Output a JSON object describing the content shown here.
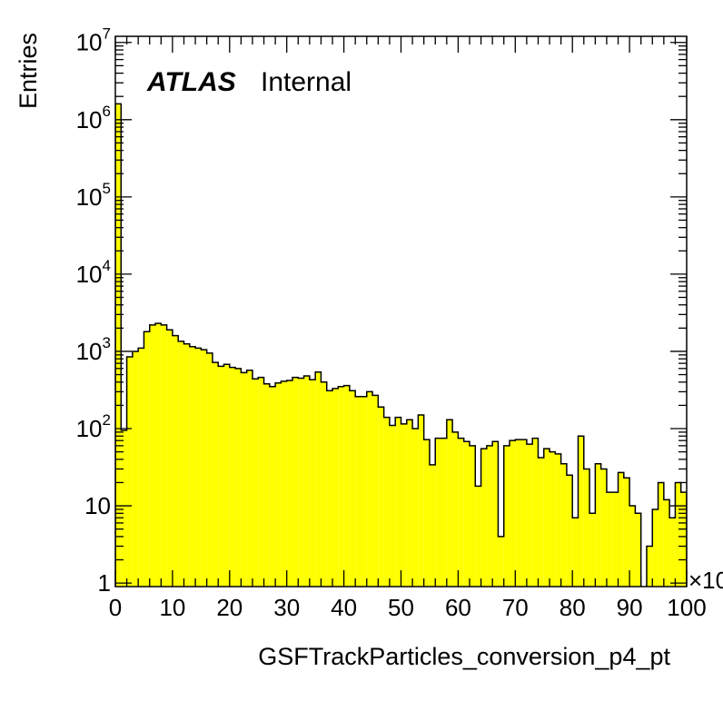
{
  "chart_data": {
    "type": "bar",
    "title": "",
    "xlabel": "GSFTrackParticles_conversion_p4_pt",
    "ylabel": "Entries",
    "x_multiplier_label": "×10",
    "annotation_bold": "ATLAS",
    "annotation_text": "Internal",
    "xlim": [
      0,
      100
    ],
    "ylim": [
      0.9,
      12000000
    ],
    "y_scale": "log",
    "grid": false,
    "fill_color": "#ffff00",
    "line_color": "#000000",
    "x_ticks": [
      {
        "value": 0,
        "label": "0"
      },
      {
        "value": 10,
        "label": "10"
      },
      {
        "value": 20,
        "label": "20"
      },
      {
        "value": 30,
        "label": "30"
      },
      {
        "value": 40,
        "label": "40"
      },
      {
        "value": 50,
        "label": "50"
      },
      {
        "value": 60,
        "label": "60"
      },
      {
        "value": 70,
        "label": "70"
      },
      {
        "value": 80,
        "label": "80"
      },
      {
        "value": 90,
        "label": "90"
      },
      {
        "value": 100,
        "label": "100"
      }
    ],
    "y_ticks": [
      {
        "value": 1,
        "base": "1",
        "exp": ""
      },
      {
        "value": 10,
        "base": "10",
        "exp": ""
      },
      {
        "value": 100,
        "base": "10",
        "exp": "2"
      },
      {
        "value": 1000,
        "base": "10",
        "exp": "3"
      },
      {
        "value": 10000,
        "base": "10",
        "exp": "4"
      },
      {
        "value": 100000,
        "base": "10",
        "exp": "5"
      },
      {
        "value": 1000000,
        "base": "10",
        "exp": "6"
      },
      {
        "value": 10000000,
        "base": "10",
        "exp": "7"
      }
    ],
    "bin_width": 1,
    "values": [
      1600000,
      95,
      850,
      1000,
      1100,
      1800,
      2200,
      2300,
      2200,
      1900,
      1600,
      1350,
      1250,
      1150,
      1100,
      1050,
      950,
      720,
      640,
      680,
      620,
      600,
      530,
      570,
      440,
      460,
      380,
      350,
      390,
      410,
      420,
      460,
      450,
      480,
      430,
      540,
      400,
      310,
      330,
      350,
      360,
      310,
      260,
      260,
      300,
      270,
      190,
      140,
      110,
      140,
      115,
      130,
      100,
      150,
      72,
      34,
      75,
      75,
      130,
      90,
      75,
      68,
      60,
      18,
      55,
      60,
      68,
      4,
      60,
      70,
      72,
      72,
      63,
      75,
      42,
      55,
      50,
      47,
      35,
      25,
      7,
      80,
      30,
      8,
      35,
      30,
      15,
      15,
      27,
      23,
      10,
      8,
      0.5,
      3,
      9,
      20,
      12,
      7,
      20,
      15
    ]
  }
}
